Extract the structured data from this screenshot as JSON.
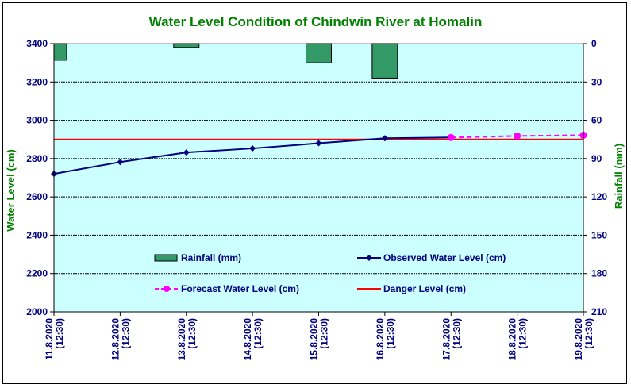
{
  "chart_data": {
    "type": "line",
    "title": "Water Level Condition of Chindwin River at Homalin",
    "ylabel": "Water Level (cm)",
    "y2label": "Rainfall (mm)",
    "categories": [
      "11.8.2020\n(12:30)",
      "12.8.2020\n(12:30)",
      "13.8.2020\n(12:30)",
      "14.8.2020\n(12:30)",
      "15.8.2020\n(12:30)",
      "16.8.2020\n(12:30)",
      "17.8.2020\n(12:30)",
      "18.8.2020\n(12:30)",
      "19.8.2020\n(12:30)"
    ],
    "ylim": [
      2000,
      3400
    ],
    "yticks": [
      3400,
      3200,
      3000,
      2800,
      2600,
      2400,
      2200,
      2000
    ],
    "y2lim": [
      0,
      210
    ],
    "y2ticks": [
      0,
      30,
      60,
      90,
      120,
      150,
      180,
      210
    ],
    "grid": true,
    "series": [
      {
        "name": "Rainfall (mm)",
        "kind": "bar",
        "axis": "right",
        "color": "#339966",
        "values": [
          13,
          null,
          3,
          null,
          15,
          27,
          null,
          null,
          null
        ]
      },
      {
        "name": "Observed Water Level (cm)",
        "kind": "line",
        "axis": "left",
        "color": "#000080",
        "values": [
          2720,
          2782,
          2832,
          2853,
          2880,
          2906,
          2910,
          null,
          null
        ]
      },
      {
        "name": "Forecast Water Level (cm)",
        "kind": "line-dashed",
        "axis": "left",
        "color": "#ff00ff",
        "values": [
          null,
          null,
          null,
          null,
          null,
          null,
          2910,
          2918,
          2922
        ]
      },
      {
        "name": "Danger Level (cm)",
        "kind": "hline",
        "axis": "left",
        "color": "#ff0000",
        "value": 2900
      }
    ],
    "plot_background": "#ccffff"
  }
}
